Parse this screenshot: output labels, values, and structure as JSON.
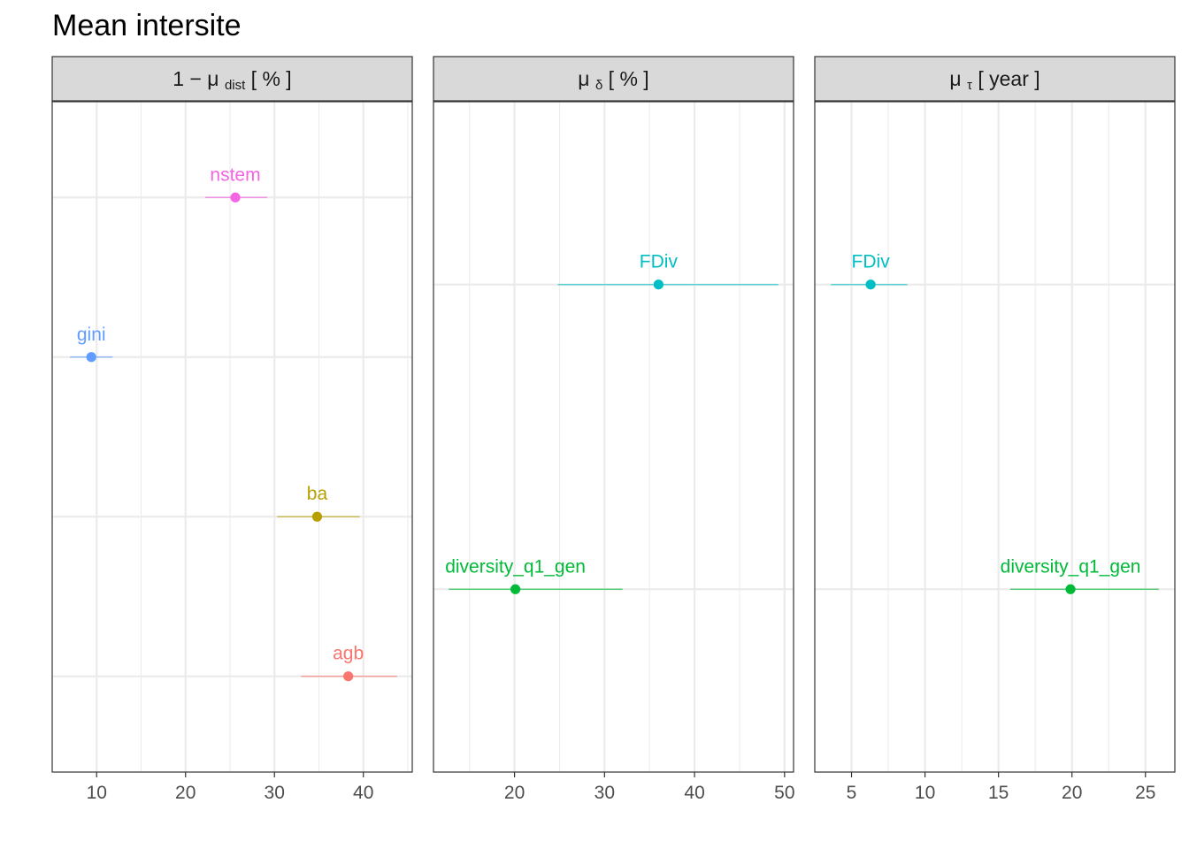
{
  "title": "Mean intersite",
  "chart_data": [
    {
      "type": "scatter",
      "panel_label": {
        "prefix": "1 − μ",
        "sub": "dist",
        "suffix": "[ % ]"
      },
      "xlim": [
        5,
        45.5
      ],
      "xticks": [
        10,
        20,
        30,
        40
      ],
      "x_minor_grid": [
        15,
        25,
        35,
        45
      ],
      "y_grid": [
        1,
        2,
        3,
        4
      ],
      "ylim": [
        0.4,
        4.6
      ],
      "points": [
        {
          "label": "agb",
          "x": 38.3,
          "lo": 33.0,
          "hi": 43.8,
          "y": 1,
          "color": "#F8766D"
        },
        {
          "label": "ba",
          "x": 34.8,
          "lo": 30.3,
          "hi": 39.6,
          "y": 2,
          "color": "#B79F00"
        },
        {
          "label": "gini",
          "x": 9.4,
          "lo": 7.0,
          "hi": 11.8,
          "y": 3,
          "color": "#619CFF"
        },
        {
          "label": "nstem",
          "x": 25.6,
          "lo": 22.2,
          "hi": 29.2,
          "y": 4,
          "color": "#F564E3"
        }
      ]
    },
    {
      "type": "scatter",
      "panel_label": {
        "prefix": "μ",
        "sub": "δ",
        "suffix": "[ % ]"
      },
      "xlim": [
        11,
        51
      ],
      "xticks": [
        20,
        30,
        40,
        50
      ],
      "x_minor_grid": [
        15,
        25,
        35,
        45
      ],
      "y_grid": [
        1,
        2
      ],
      "ylim": [
        0.4,
        2.6
      ],
      "points": [
        {
          "label": "diversity_q1_gen",
          "x": 20.1,
          "lo": 12.7,
          "hi": 32.0,
          "y": 1,
          "color": "#00BA38"
        },
        {
          "label": "FDiv",
          "x": 36.0,
          "lo": 24.8,
          "hi": 49.3,
          "y": 2,
          "color": "#00BFC4"
        }
      ]
    },
    {
      "type": "scatter",
      "panel_label": {
        "prefix": "μ",
        "sub": "τ",
        "suffix": "[ year ]"
      },
      "xlim": [
        2.5,
        27
      ],
      "xticks": [
        5,
        10,
        15,
        20,
        25
      ],
      "x_minor_grid": [
        7.5,
        12.5,
        17.5,
        22.5
      ],
      "y_grid": [
        1,
        2
      ],
      "ylim": [
        0.4,
        2.6
      ],
      "points": [
        {
          "label": "diversity_q1_gen",
          "x": 19.9,
          "lo": 15.8,
          "hi": 25.9,
          "y": 1,
          "color": "#00BA38"
        },
        {
          "label": "FDiv",
          "x": 6.3,
          "lo": 3.6,
          "hi": 8.8,
          "y": 2,
          "color": "#00BFC4"
        }
      ]
    }
  ]
}
